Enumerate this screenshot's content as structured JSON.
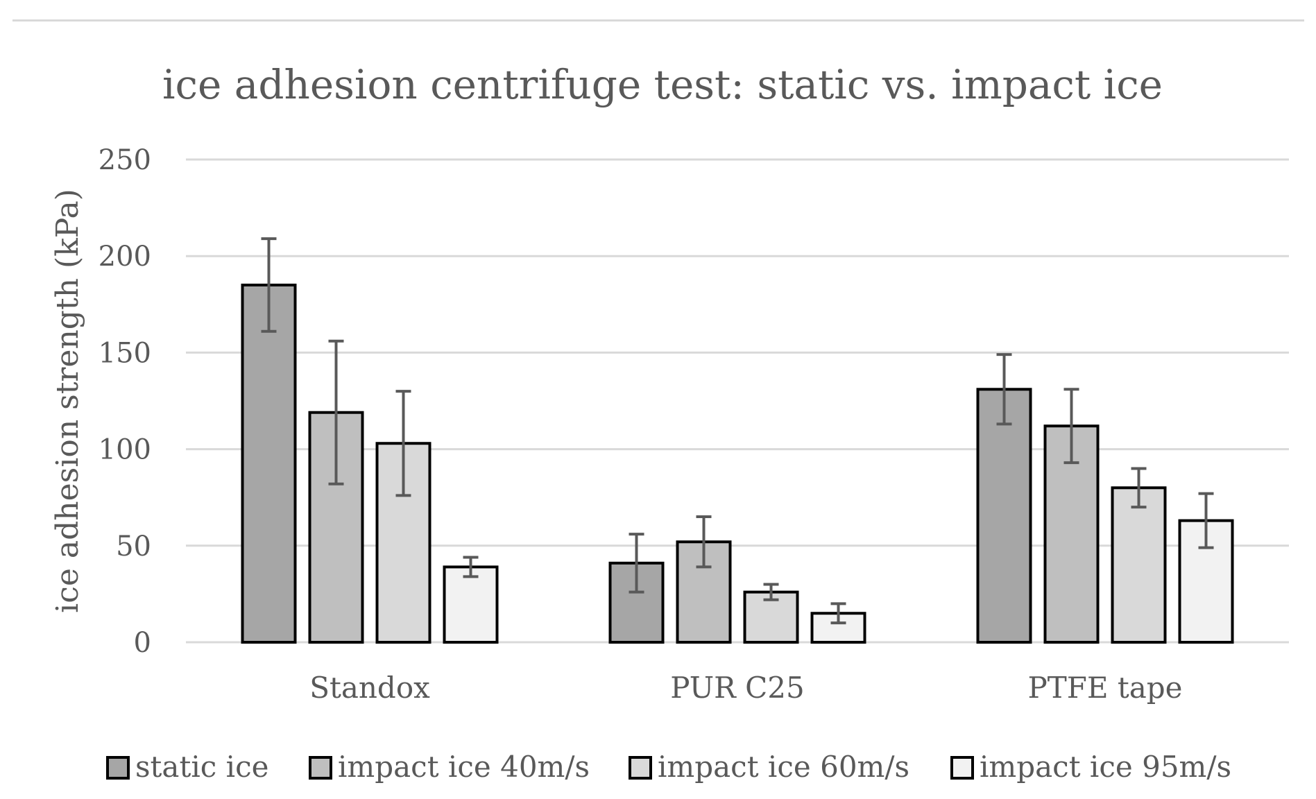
{
  "chart_data": {
    "type": "bar",
    "title": "ice adhesion centrifuge test: static vs. impact ice",
    "xlabel": "",
    "ylabel": "ice adhesion strength (kPa)",
    "ylim": [
      0,
      250
    ],
    "yticks": [
      0,
      50,
      100,
      150,
      200,
      250
    ],
    "grid": true,
    "legend_position": "bottom",
    "categories": [
      "Standox",
      "PUR C25",
      "PTFE tape"
    ],
    "series": [
      {
        "name": "static ice",
        "color": "#a6a6a6",
        "values": [
          185,
          41,
          131
        ],
        "errors": [
          24,
          15,
          18
        ]
      },
      {
        "name": "impact ice 40m/s",
        "color": "#bfbfbf",
        "values": [
          119,
          52,
          112
        ],
        "errors": [
          37,
          13,
          19
        ]
      },
      {
        "name": "impact ice 60m/s",
        "color": "#d9d9d9",
        "values": [
          103,
          26,
          80
        ],
        "errors": [
          27,
          4,
          10
        ]
      },
      {
        "name": "impact ice 95m/s",
        "color": "#f2f2f2",
        "values": [
          39,
          15,
          63
        ],
        "errors": [
          5,
          5,
          14
        ]
      }
    ]
  }
}
